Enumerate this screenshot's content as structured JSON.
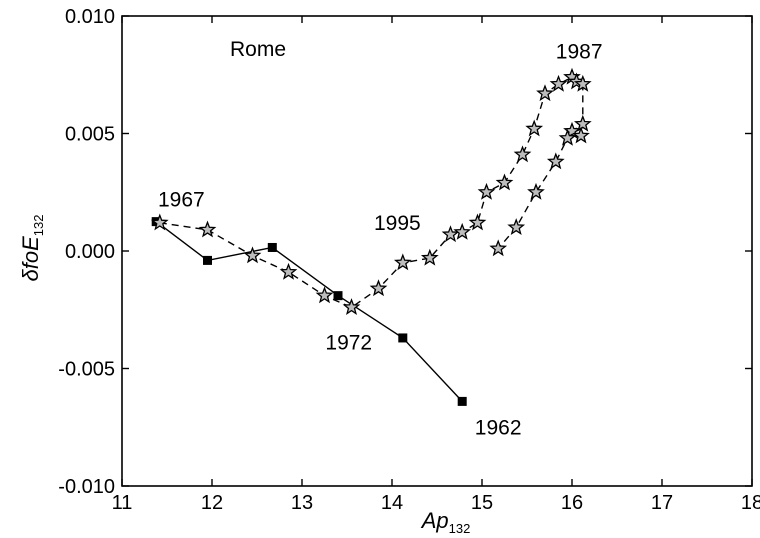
{
  "chart_data": {
    "type": "scatter",
    "title": "",
    "xlabel": {
      "main": "Ap",
      "sub": "132"
    },
    "ylabel": {
      "prefix": "δ",
      "main": "foE",
      "sub": "132"
    },
    "xlim": [
      11,
      18
    ],
    "ylim": [
      -0.01,
      0.01
    ],
    "x_ticks": [
      11,
      12,
      13,
      14,
      15,
      16,
      17,
      18
    ],
    "x_tick_labels": [
      "11",
      "12",
      "13",
      "14",
      "15",
      "16",
      "17",
      "18"
    ],
    "y_ticks": [
      -0.01,
      -0.005,
      0.0,
      0.005,
      0.01
    ],
    "y_tick_labels": [
      "-0.010",
      "-0.005",
      "0.000",
      "0.005",
      "0.010"
    ],
    "grid": false,
    "colors": {
      "series": "#000000",
      "star_fill": "#bdbdbd"
    },
    "series": [
      {
        "marker": "square",
        "line": "solid",
        "x": [
          11.38,
          11.95,
          12.67,
          13.4,
          14.12,
          14.78
        ],
        "y": [
          0.00125,
          -0.0004,
          0.00015,
          -0.0019,
          -0.0037,
          -0.0064
        ]
      },
      {
        "marker": "star",
        "line": "dashed",
        "x": [
          11.42,
          11.95,
          12.45,
          12.85,
          13.25,
          13.55,
          13.85,
          14.12,
          14.42,
          14.65,
          14.78,
          14.95,
          15.05,
          15.25,
          15.45,
          15.58,
          15.7,
          15.85,
          16.0,
          16.05,
          16.12,
          16.12,
          16.0,
          16.1,
          15.95,
          15.82,
          15.6,
          15.38,
          15.18
        ],
        "y": [
          0.0012,
          0.0009,
          -0.0002,
          -0.0009,
          -0.0019,
          -0.0024,
          -0.0016,
          -0.0005,
          -0.0003,
          0.0007,
          0.0008,
          0.0012,
          0.0025,
          0.0029,
          0.0041,
          0.0052,
          0.0067,
          0.0071,
          0.0074,
          0.0072,
          0.0071,
          0.0054,
          0.0051,
          0.0049,
          0.0048,
          0.0038,
          0.0025,
          0.001,
          0.0001
        ]
      }
    ],
    "annotations": [
      {
        "text": "Rome",
        "x": 12.2,
        "y": 0.0083
      },
      {
        "text": "1967",
        "x": 11.4,
        "y": 0.0019
      },
      {
        "text": "1987",
        "x": 15.82,
        "y": 0.0082
      },
      {
        "text": "1995",
        "x": 13.8,
        "y": 0.0009
      },
      {
        "text": "1972",
        "x": 13.26,
        "y": -0.0042
      },
      {
        "text": "1962",
        "x": 14.92,
        "y": -0.0078
      }
    ]
  }
}
